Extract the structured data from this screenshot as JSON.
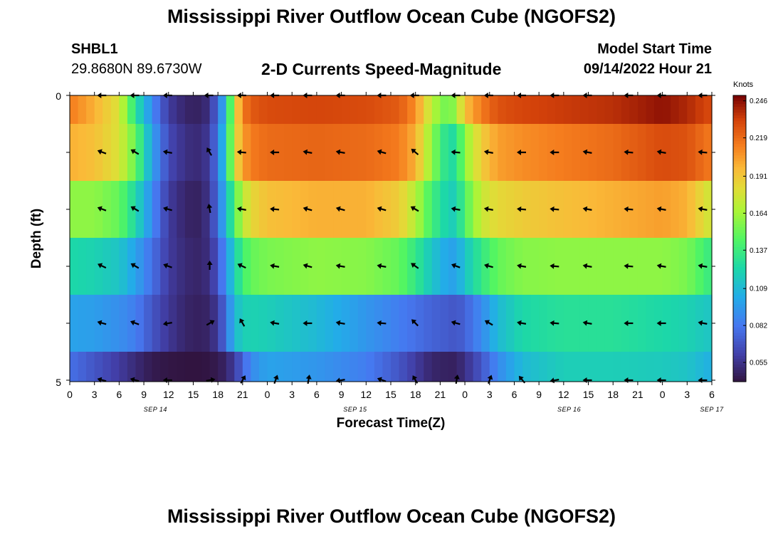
{
  "header": {
    "title": "Mississippi River Outflow Ocean Cube (NGOFS2)",
    "station": "SHBL1",
    "coords": "29.8680N  89.6730W",
    "subtitle": "2-D Currents Speed-Magnitude",
    "model_start_label": "Model Start Time",
    "model_start_value": "09/14/2022 Hour 21"
  },
  "footer": {
    "title": "Mississippi River Outflow Ocean Cube (NGOFS2)"
  },
  "chart_data": {
    "type": "heatmap",
    "xlabel": "Forecast Time(Z)",
    "ylabel": "Depth (ft)",
    "ylim": [
      0,
      5
    ],
    "y_ticks": [
      "0",
      "5"
    ],
    "x_ticks": [
      "0",
      "3",
      "6",
      "9",
      "12",
      "15",
      "18",
      "21",
      "0",
      "3",
      "6",
      "9",
      "12",
      "15",
      "18",
      "21",
      "0",
      "3",
      "6",
      "9",
      "12",
      "15",
      "18",
      "21",
      "0",
      "3",
      "6"
    ],
    "x_date_labels": [
      {
        "label": "SEP 14",
        "hour_index": 12
      },
      {
        "label": "SEP 15",
        "hour_index": 40
      },
      {
        "label": "SEP 16",
        "hour_index": 70
      },
      {
        "label": "SEP 17",
        "hour_index": 90
      }
    ],
    "x_range_hours": [
      0,
      78
    ],
    "colorbar": {
      "title": "Knots",
      "ticks": [
        "0.246",
        "0.219",
        "0.191",
        "0.164",
        "0.137",
        "0.109",
        "0.082",
        "0.055"
      ],
      "range": [
        0.041,
        0.25
      ]
    },
    "depth_layers": [
      0,
      1,
      2,
      3,
      4,
      5
    ],
    "speed_keyframes_hours": [
      0,
      3,
      6,
      8,
      10,
      12,
      14,
      15,
      16,
      17,
      18,
      19,
      20,
      21,
      22,
      24,
      30,
      36,
      40,
      42,
      44,
      46,
      47,
      48,
      50,
      52,
      55,
      60,
      66,
      72,
      75,
      78
    ],
    "speed_knots": [
      [
        0.215,
        0.2,
        0.18,
        0.13,
        0.09,
        0.06,
        0.05,
        0.048,
        0.049,
        0.055,
        0.08,
        0.11,
        0.18,
        0.215,
        0.225,
        0.23,
        0.232,
        0.23,
        0.225,
        0.21,
        0.17,
        0.15,
        0.165,
        0.195,
        0.215,
        0.228,
        0.232,
        0.235,
        0.238,
        0.246,
        0.24,
        0.23
      ],
      [
        0.2,
        0.195,
        0.18,
        0.15,
        0.1,
        0.065,
        0.055,
        0.052,
        0.053,
        0.06,
        0.085,
        0.12,
        0.18,
        0.205,
        0.215,
        0.22,
        0.222,
        0.22,
        0.215,
        0.2,
        0.16,
        0.125,
        0.13,
        0.16,
        0.19,
        0.205,
        0.21,
        0.215,
        0.22,
        0.23,
        0.228,
        0.215
      ],
      [
        0.16,
        0.16,
        0.15,
        0.125,
        0.09,
        0.06,
        0.05,
        0.048,
        0.049,
        0.058,
        0.08,
        0.11,
        0.145,
        0.17,
        0.185,
        0.195,
        0.2,
        0.2,
        0.19,
        0.17,
        0.14,
        0.12,
        0.12,
        0.145,
        0.175,
        0.185,
        0.19,
        0.195,
        0.2,
        0.205,
        0.2,
        0.175
      ],
      [
        0.125,
        0.122,
        0.115,
        0.1,
        0.08,
        0.06,
        0.052,
        0.05,
        0.05,
        0.055,
        0.07,
        0.095,
        0.12,
        0.14,
        0.15,
        0.155,
        0.16,
        0.158,
        0.15,
        0.135,
        0.115,
        0.1,
        0.1,
        0.115,
        0.135,
        0.15,
        0.158,
        0.16,
        0.16,
        0.16,
        0.155,
        0.135
      ],
      [
        0.1,
        0.098,
        0.092,
        0.085,
        0.07,
        0.058,
        0.05,
        0.048,
        0.048,
        0.05,
        0.06,
        0.08,
        0.11,
        0.12,
        0.122,
        0.12,
        0.11,
        0.095,
        0.085,
        0.08,
        0.075,
        0.072,
        0.07,
        0.075,
        0.09,
        0.11,
        0.125,
        0.13,
        0.13,
        0.125,
        0.122,
        0.115
      ],
      [
        0.08,
        0.07,
        0.06,
        0.052,
        0.045,
        0.043,
        0.042,
        0.042,
        0.042,
        0.043,
        0.045,
        0.05,
        0.06,
        0.075,
        0.09,
        0.1,
        0.095,
        0.085,
        0.07,
        0.06,
        0.05,
        0.048,
        0.048,
        0.055,
        0.07,
        0.09,
        0.11,
        0.12,
        0.12,
        0.118,
        0.115,
        0.105
      ]
    ],
    "arrow_hours": [
      4,
      8,
      12,
      17,
      21,
      25,
      29,
      33,
      38,
      42,
      47,
      51,
      55,
      59,
      63,
      68,
      72,
      77
    ],
    "arrow_directions_deg": [
      [
        180,
        180,
        180,
        180,
        180,
        180,
        180,
        180,
        180,
        180,
        180,
        180,
        180,
        180,
        180,
        180,
        180,
        180
      ],
      [
        160,
        150,
        170,
        120,
        175,
        180,
        170,
        170,
        165,
        140,
        175,
        170,
        180,
        180,
        170,
        175,
        170,
        175
      ],
      [
        160,
        150,
        165,
        100,
        170,
        175,
        165,
        165,
        165,
        150,
        170,
        170,
        175,
        175,
        170,
        175,
        170,
        170
      ],
      [
        155,
        150,
        160,
        90,
        155,
        170,
        165,
        170,
        170,
        145,
        160,
        165,
        170,
        175,
        170,
        175,
        170,
        170
      ],
      [
        165,
        160,
        190,
        30,
        120,
        170,
        180,
        170,
        175,
        135,
        165,
        150,
        170,
        175,
        170,
        180,
        180,
        170
      ],
      [
        165,
        165,
        180,
        10,
        60,
        70,
        80,
        190,
        160,
        120,
        80,
        70,
        130,
        190,
        180,
        180,
        180,
        180
      ]
    ]
  }
}
